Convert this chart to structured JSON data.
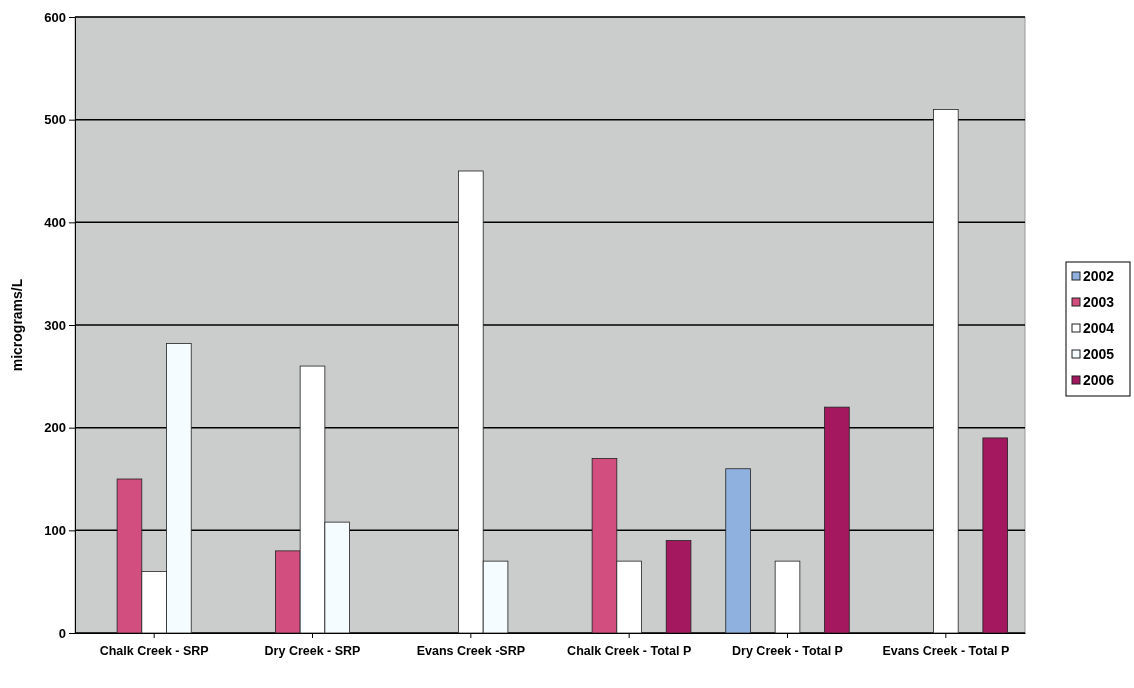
{
  "chart_data": {
    "type": "bar",
    "ylabel": "micrograms/L",
    "categories": [
      "Chalk Creek - SRP",
      "Dry Creek - SRP",
      "Evans Creek -SRP",
      "Chalk Creek - Total P",
      "Dry Creek - Total P",
      "Evans Creek - Total P"
    ],
    "series": [
      {
        "name": "2002",
        "color": "#8fb1e0",
        "values": [
          null,
          null,
          null,
          null,
          160,
          null
        ]
      },
      {
        "name": "2003",
        "color": "#d24e7e",
        "values": [
          150,
          80,
          null,
          170,
          null,
          null
        ]
      },
      {
        "name": "2004",
        "color": "#ffffff",
        "values": [
          60,
          260,
          450,
          70,
          70,
          510
        ]
      },
      {
        "name": "2005",
        "color": "#f4fcff",
        "values": [
          282,
          108,
          70,
          null,
          null,
          null
        ]
      },
      {
        "name": "2006",
        "color": "#a3185e",
        "values": [
          null,
          null,
          null,
          90,
          220,
          190
        ]
      }
    ],
    "ylim": [
      0,
      600
    ],
    "yticks": [
      0,
      100,
      200,
      300,
      400,
      500,
      600
    ],
    "grid": "y",
    "legend": "right"
  }
}
